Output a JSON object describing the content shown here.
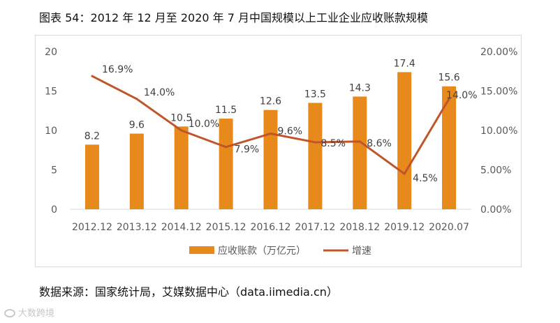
{
  "page": {
    "title": "图表 54：2012 年 12 月至 2020 年 7 月中国规模以上工业企业应收账款规模",
    "source": "数据来源：国家统计局，艾媒数据中心（data.iimedia.cn）",
    "watermark": "大数跨境"
  },
  "colors": {
    "bar": "#E8891B",
    "line": "#C0552A",
    "axis": "#d9d9d9",
    "text": "#595959"
  },
  "chart_data": {
    "type": "bar",
    "title": "",
    "categories": [
      "2012.12",
      "2013.12",
      "2014.12",
      "2015.12",
      "2016.12",
      "2017.12",
      "2018.12",
      "2019.12",
      "2020.07"
    ],
    "series": [
      {
        "name": "应收账款（万亿元）",
        "type": "bar",
        "axis": "left",
        "values": [
          8.2,
          9.6,
          10.5,
          11.5,
          12.6,
          13.5,
          14.3,
          17.4,
          15.6
        ],
        "labels": [
          "8.2",
          "9.6",
          "10.5",
          "11.5",
          "12.6",
          "13.5",
          "14.3",
          "17.4",
          "15.6"
        ]
      },
      {
        "name": "增速",
        "type": "line",
        "axis": "right",
        "values": [
          16.9,
          14.0,
          10.0,
          7.9,
          9.6,
          8.5,
          8.6,
          4.5,
          14.0
        ],
        "labels": [
          "16.9%",
          "14.0%",
          "10.0%",
          "7.9%",
          "9.6%",
          "8.5%",
          "8.6%",
          "4.5%",
          "14.0%"
        ]
      }
    ],
    "y_left": {
      "min": 0,
      "max": 20,
      "ticks": [
        "0",
        "5",
        "10",
        "15",
        "20"
      ]
    },
    "y_right": {
      "min": 0,
      "max": 20,
      "ticks": [
        "0.00%",
        "5.00%",
        "10.00%",
        "15.00%",
        "20.00%"
      ]
    },
    "legend": [
      "应收账款（万亿元）",
      "增速"
    ],
    "legend_position": "bottom"
  }
}
